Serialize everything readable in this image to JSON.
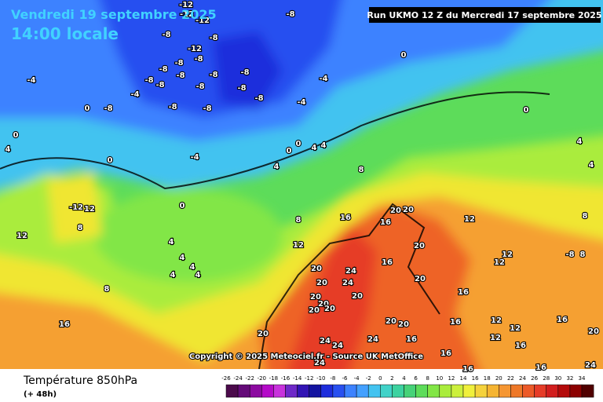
{
  "header": {
    "date": "Vendredi 19 septembre 2025",
    "time": "14:00 locale",
    "run": "Run UKMO 12 Z du Mercredi 17 septembre 2025"
  },
  "copyright": "Copyright © 2025 Meteociel.fr - Source UK MetOffice",
  "footer": {
    "title": "Température 850hPa",
    "lead": "(+ 48h)"
  },
  "contour_labels": [
    -12,
    -12,
    -12,
    -8,
    -8,
    -12,
    -8,
    -8,
    -8,
    -8,
    -8,
    -8,
    -8,
    -8,
    -8,
    -8,
    -8,
    -8,
    -8,
    -4,
    -8,
    -4,
    -8,
    0,
    -4,
    0,
    -4,
    0,
    0,
    -4,
    0,
    0,
    4,
    4,
    4,
    0,
    -12,
    12,
    8,
    12,
    4,
    4,
    4,
    4,
    4,
    8,
    16,
    12,
    8,
    16,
    8,
    20,
    20,
    16,
    12,
    20,
    20,
    20,
    24,
    24,
    20,
    16,
    20,
    20,
    20,
    20,
    20,
    20,
    20,
    16,
    24,
    24,
    24,
    24,
    20,
    16,
    16,
    12,
    12,
    12,
    16,
    16,
    24,
    20,
    8,
    -8,
    8,
    4,
    4,
    16,
    12,
    12,
    16,
    16,
    0,
    4
  ],
  "legend": {
    "ticks": [
      -26,
      -24,
      -22,
      -20,
      -18,
      -16,
      -14,
      -12,
      -10,
      -8,
      -6,
      -4,
      -2,
      0,
      2,
      4,
      6,
      8,
      10,
      12,
      14,
      16,
      18,
      20,
      22,
      24,
      26,
      28,
      30,
      32,
      34
    ],
    "colors": [
      "#4b0a4b",
      "#640a78",
      "#8c0aa0",
      "#b40ac8",
      "#c832dc",
      "#6e28c8",
      "#3214b4",
      "#1414a0",
      "#1e2ddc",
      "#2850f0",
      "#3c82ff",
      "#43a0ff",
      "#43c3f0",
      "#41d2c8",
      "#3cd2a0",
      "#46d278",
      "#5ddc5a",
      "#82e646",
      "#aaec3c",
      "#ccf03c",
      "#f0f03c",
      "#f5d23c",
      "#f5b432",
      "#f59632",
      "#ee7828",
      "#ec5a28",
      "#e63c28",
      "#d21e1e",
      "#b40a0a",
      "#8c0000",
      "#500000"
    ]
  }
}
